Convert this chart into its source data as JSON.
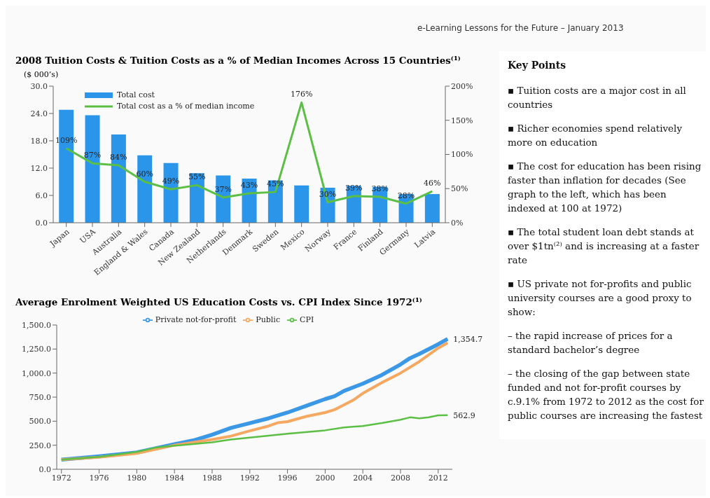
{
  "chart_data": [
    {
      "type": "bar",
      "title": "2008 Tuition Costs & Tuition Costs as a % of Median Incomes Across 15 Countries⁽¹⁾",
      "ylabel": "($ 000’s)",
      "annotations": [
        "e-Learning Lessons for the Future – January 2013"
      ],
      "categories": [
        "Japan",
        "USA",
        "Australia",
        "England & Wales",
        "Canada",
        "New Zealand",
        "Netherlands",
        "Denmark",
        "Sweden",
        "Mexico",
        "Norway",
        "France",
        "Finland",
        "Germany",
        "Latvia"
      ],
      "series": [
        {
          "name": "Total cost",
          "type": "bar",
          "color": "#2b95ea",
          "values": [
            24.8,
            23.6,
            19.4,
            14.8,
            13.1,
            10.9,
            10.4,
            9.7,
            9.3,
            8.2,
            7.7,
            8.1,
            7.9,
            6.3,
            6.3
          ]
        },
        {
          "name": "Total cost as a % of median income",
          "type": "line",
          "axis": "y2",
          "color": "#5cbf45",
          "values": [
            109,
            87,
            84,
            60,
            49,
            55,
            37,
            43,
            45,
            176,
            30,
            39,
            38,
            28,
            46
          ],
          "value_labels": [
            "109%",
            "87%",
            "84%",
            "60%",
            "49%",
            "55%",
            "37%",
            "43%",
            "45%",
            "176%",
            "30%",
            "39%",
            "38%",
            "28%",
            "46%"
          ]
        }
      ],
      "ylim": [
        0,
        30
      ],
      "yticks": [
        {
          "value": 0,
          "label": "0.0"
        },
        {
          "value": 6,
          "label": "6.0"
        },
        {
          "value": 12,
          "label": "12.0"
        },
        {
          "value": 18,
          "label": "18.0"
        },
        {
          "value": 24,
          "label": "24.0"
        },
        {
          "value": 30,
          "label": "30.0"
        }
      ],
      "y2lim": [
        0,
        200
      ],
      "y2ticks": [
        {
          "value": 0,
          "label": "0%"
        },
        {
          "value": 50,
          "label": "50%"
        },
        {
          "value": 100,
          "label": "100%"
        },
        {
          "value": 150,
          "label": "150%"
        },
        {
          "value": 200,
          "label": "200%"
        }
      ],
      "legend": "top left",
      "marker": "none"
    },
    {
      "type": "line",
      "title": "Average Enrolment Weighted US Education Costs vs. CPI Index Since 1972⁽¹⁾",
      "series": [
        {
          "name": "Private not-for-profit",
          "color": "#3b98e6",
          "x": [
            1972,
            1976,
            1980,
            1984,
            1986,
            1988,
            1990,
            1992,
            1994,
            1996,
            1998,
            2000,
            2001,
            2002,
            2004,
            2006,
            2008,
            2009,
            2010,
            2012,
            2013
          ],
          "values": [
            100,
            135,
            175,
            260,
            300,
            360,
            430,
            480,
            530,
            590,
            660,
            730,
            760,
            815,
            890,
            980,
            1090,
            1155,
            1200,
            1300,
            1354.7
          ]
        },
        {
          "name": "Public",
          "color": "#f5a862",
          "x": [
            1972,
            1976,
            1980,
            1984,
            1988,
            1990,
            1992,
            1994,
            1995,
            1996,
            1998,
            2000,
            2001,
            2002,
            2003,
            2004,
            2006,
            2008,
            2010,
            2012,
            2013
          ],
          "values": [
            100,
            125,
            165,
            250,
            310,
            345,
            400,
            450,
            485,
            495,
            550,
            590,
            620,
            670,
            720,
            790,
            900,
            1000,
            1120,
            1260,
            1315
          ]
        },
        {
          "name": "CPI",
          "color": "#5cbf45",
          "x": [
            1972,
            1976,
            1980,
            1982,
            1984,
            1988,
            1990,
            1992,
            1996,
            2000,
            2002,
            2004,
            2006,
            2008,
            2009,
            2010,
            2011,
            2012,
            2013
          ],
          "values": [
            100,
            130,
            180,
            225,
            245,
            280,
            310,
            330,
            370,
            405,
            435,
            450,
            480,
            515,
            540,
            530,
            540,
            560,
            562.9
          ]
        }
      ],
      "xlim": [
        1971.5,
        2013.5
      ],
      "xticks": [
        1972,
        1976,
        1980,
        1984,
        1988,
        1992,
        1996,
        2000,
        2004,
        2008,
        2012
      ],
      "ylim": [
        0,
        1500
      ],
      "yticks": [
        {
          "value": 0,
          "label": "0.0"
        },
        {
          "value": 250,
          "label": "250.0"
        },
        {
          "value": 500,
          "label": "500.0"
        },
        {
          "value": 750,
          "label": "750.0"
        },
        {
          "value": 1000,
          "label": "1,000.0"
        },
        {
          "value": 1250,
          "label": "1,250.0"
        },
        {
          "value": 1500,
          "label": "1,500.0"
        }
      ],
      "annotations": [
        {
          "text": "1,354.7",
          "x": 2013,
          "y": 1354.7
        },
        {
          "text": "562.9",
          "x": 2013,
          "y": 562.9
        }
      ],
      "legend": "top",
      "marker": "none",
      "line_style": "solid"
    },
    {
      "type": "other",
      "title": "Key Points",
      "annotations": [
        "▪ Tuition costs are a major cost in all countries",
        "▪ Richer economies spend relatively more on education",
        "▪ The cost for education has been rising faster than inflation for decades (See graph to the left, which has been indexed at 100 at 1972)",
        "▪ The total student loan debt stands at over $1tn⁽²⁾ and is increasing at a faster rate",
        "▪ US private not for-profits and public university courses are a good proxy to show:",
        "– the rapid increase of prices for a standard bachelor’s degree",
        "– the closing of the gap between state funded and not for-profit courses by c.9.1% from 1972 to 2012 as the cost for public courses are increasing the fastest"
      ]
    }
  ]
}
